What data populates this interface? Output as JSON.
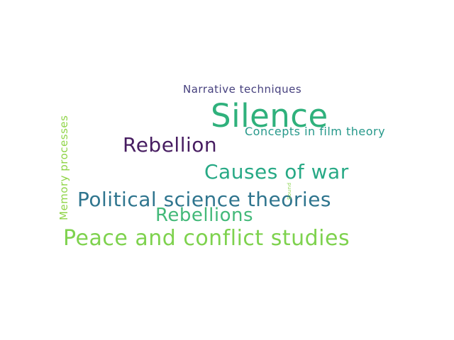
{
  "words": {
    "narrative_techniques": {
      "text": "Narrative techniques",
      "color": "#46407e"
    },
    "silence": {
      "text": "Silence",
      "color": "#2fb17c"
    },
    "concepts_in_film_theory": {
      "text": "Concepts in film theory",
      "color": "#26988a"
    },
    "rebellion": {
      "text": "Rebellion",
      "color": "#471d61"
    },
    "causes_of_war": {
      "text": "Causes of war",
      "color": "#27a985"
    },
    "political_science_theories": {
      "text": "Political science theories",
      "color": "#2f758e"
    },
    "sound": {
      "text": "Sound",
      "color": "#8ad34d"
    },
    "rebellions": {
      "text": "Rebellions",
      "color": "#43b979"
    },
    "peace_and_conflict_studies": {
      "text": "Peace and conflict studies",
      "color": "#7ed24e"
    },
    "memory_processes": {
      "text": "Memory processes",
      "color": "#8fd447"
    }
  }
}
